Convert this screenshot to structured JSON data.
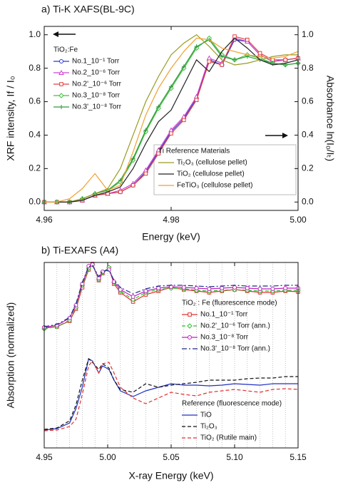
{
  "chart_data": [
    {
      "type": "line",
      "title": "a) Ti-K XAFS(BL-9C)",
      "x_label": "Energy (keV)",
      "y_label": "XRF intensity, If / I₀",
      "y2_label": "Absorbance ln(I₀/Iₜ)",
      "xlim": [
        4.96,
        5.0
      ],
      "xticks": [
        4.96,
        4.98,
        {
          "value": 5,
          "label": "5.00"
        }
      ],
      "ylim": [
        -0.05,
        1.05
      ],
      "yticks": [
        {
          "value": 0,
          "label": "0.0"
        },
        0.2,
        0.4,
        0.6,
        0.8,
        {
          "value": 1,
          "label": "1.0"
        }
      ],
      "y2lim": [
        -0.05,
        1.05
      ],
      "y2ticks": [
        {
          "value": 0,
          "label": "0.0"
        },
        0.2,
        0.4,
        0.6,
        0.8,
        {
          "value": 1,
          "label": "1.0"
        }
      ],
      "legend_titles": [
        "TiO₂:Fe",
        "Ti Reference Materials"
      ],
      "x": [
        4.96,
        4.962,
        4.964,
        4.966,
        4.968,
        4.97,
        4.972,
        4.974,
        4.976,
        4.978,
        4.98,
        4.982,
        4.984,
        4.986,
        4.988,
        4.99,
        4.992,
        4.994,
        4.996,
        4.998,
        5.0
      ],
      "series": [
        {
          "name": "No.1_10⁻¹ Torr",
          "color": "#2a3ad0",
          "marker": "circle",
          "values": [
            0,
            0,
            0,
            0.01,
            0.04,
            0.05,
            0.06,
            0.1,
            0.18,
            0.3,
            0.42,
            0.5,
            0.62,
            0.85,
            0.82,
            0.97,
            0.96,
            0.88,
            0.84,
            0.85,
            0.86
          ]
        },
        {
          "name": "No.2_10⁻⁶ Torr",
          "color": "#d040d0",
          "marker": "triangle",
          "values": [
            0,
            0,
            0,
            0.01,
            0.04,
            0.05,
            0.07,
            0.11,
            0.19,
            0.31,
            0.43,
            0.51,
            0.63,
            0.86,
            0.83,
            0.98,
            0.96,
            0.88,
            0.84,
            0.85,
            0.86
          ]
        },
        {
          "name": "No.2'_10⁻⁶ Torr",
          "color": "#e04040",
          "marker": "square",
          "values": [
            0,
            0,
            0,
            0.01,
            0.04,
            0.05,
            0.06,
            0.1,
            0.17,
            0.29,
            0.41,
            0.49,
            0.61,
            0.84,
            0.82,
            0.99,
            0.97,
            0.89,
            0.85,
            0.85,
            0.86
          ]
        },
        {
          "name": "No.3_10⁻⁸ Torr",
          "color": "#40c040",
          "marker": "diamond",
          "values": [
            0,
            0,
            0,
            0.02,
            0.05,
            0.07,
            0.12,
            0.25,
            0.42,
            0.56,
            0.68,
            0.8,
            0.92,
            0.98,
            0.88,
            0.85,
            0.88,
            0.86,
            0.83,
            0.82,
            0.83
          ]
        },
        {
          "name": "No.3'_10⁻⁸ Torr",
          "color": "#2f9a3c",
          "marker": "plus",
          "values": [
            0,
            0,
            0,
            0.02,
            0.05,
            0.07,
            0.13,
            0.26,
            0.43,
            0.57,
            0.69,
            0.81,
            0.93,
            0.97,
            0.87,
            0.85,
            0.87,
            0.85,
            0.83,
            0.82,
            0.83
          ]
        },
        {
          "name": "Ti₂O₃ (cellulose pellet)",
          "color": "#9a9a20",
          "axis": "y2",
          "values": [
            0,
            0,
            0,
            0.02,
            0.05,
            0.08,
            0.2,
            0.4,
            0.6,
            0.75,
            0.88,
            0.95,
            1.0,
            0.93,
            0.85,
            0.82,
            0.83,
            0.85,
            0.87,
            0.88,
            0.88
          ]
        },
        {
          "name": "TiO₂ (cellulose pellet)",
          "color": "#222222",
          "axis": "y2",
          "values": [
            0,
            0,
            0,
            0.01,
            0.04,
            0.06,
            0.09,
            0.2,
            0.35,
            0.48,
            0.55,
            0.7,
            0.85,
            0.78,
            0.9,
            0.98,
            0.92,
            0.85,
            0.82,
            0.83,
            0.85
          ]
        },
        {
          "name": "FeTiO₃ (cellulose pellet)",
          "color": "#f0a030",
          "axis": "y2",
          "values": [
            0,
            0,
            0.02,
            0.08,
            0.17,
            0.07,
            0.1,
            0.3,
            0.52,
            0.68,
            0.8,
            0.9,
            0.98,
            0.97,
            0.92,
            0.9,
            0.88,
            0.87,
            0.86,
            0.87,
            0.9
          ]
        }
      ]
    },
    {
      "type": "line",
      "title": "b) Ti-EXAFS (A4)",
      "x_label": "X-ray Energy (keV)",
      "y_label": "Absorption (normalized)",
      "xlim": [
        4.95,
        5.15
      ],
      "xticks": [
        4.95,
        {
          "value": 5,
          "label": "5.00"
        },
        5.05,
        {
          "value": 5.1,
          "label": "5.10"
        },
        5.15
      ],
      "ylim": [
        0,
        2.6
      ],
      "grid_step": 0.01,
      "legend_titles": [
        "TiO₂ : Fe (fluorescence mode)",
        "Reference (fluorescence mode)"
      ],
      "x": [
        4.95,
        4.96,
        4.97,
        4.975,
        4.98,
        4.985,
        4.988,
        4.993,
        4.996,
        5.001,
        5.005,
        5.01,
        5.02,
        5.03,
        5.04,
        5.05,
        5.06,
        5.07,
        5.08,
        5.09,
        5.1,
        5.11,
        5.12,
        5.13,
        5.14,
        5.15
      ],
      "series": [
        {
          "name": "No.1_10⁻¹ Torr",
          "color": "#e03030",
          "marker": "square",
          "values": [
            1.68,
            1.7,
            1.78,
            1.95,
            2.25,
            2.5,
            2.58,
            2.35,
            2.45,
            2.52,
            2.3,
            2.18,
            2.05,
            2.15,
            2.2,
            2.25,
            2.22,
            2.2,
            2.18,
            2.2,
            2.22,
            2.2,
            2.18,
            2.18,
            2.2,
            2.19
          ]
        },
        {
          "name": "No.2'_10⁻⁶ Torr (ann.)",
          "color": "#30c030",
          "marker": "diamond",
          "dash": "dashed",
          "values": [
            1.67,
            1.7,
            1.79,
            1.97,
            2.28,
            2.52,
            2.57,
            2.36,
            2.46,
            2.53,
            2.32,
            2.2,
            2.08,
            2.18,
            2.22,
            2.24,
            2.23,
            2.21,
            2.2,
            2.21,
            2.22,
            2.21,
            2.2,
            2.2,
            2.21,
            2.21
          ]
        },
        {
          "name": "No.3_10⁻⁸ Torr",
          "color": "#c020c0",
          "marker": "circle",
          "values": [
            1.69,
            1.72,
            1.82,
            2.0,
            2.3,
            2.55,
            2.57,
            2.38,
            2.47,
            2.5,
            2.33,
            2.22,
            2.12,
            2.2,
            2.24,
            2.26,
            2.25,
            2.24,
            2.23,
            2.24,
            2.25,
            2.24,
            2.23,
            2.23,
            2.24,
            2.24
          ]
        },
        {
          "name": "No.3'_10⁻⁸ Torr (ann.)",
          "color": "#1a2a90",
          "dash": "dashdot",
          "values": [
            1.7,
            1.73,
            1.83,
            2.02,
            2.32,
            2.54,
            2.56,
            2.4,
            2.48,
            2.49,
            2.35,
            2.25,
            2.16,
            2.23,
            2.27,
            2.28,
            2.28,
            2.27,
            2.26,
            2.27,
            2.28,
            2.27,
            2.27,
            2.27,
            2.28,
            2.28
          ]
        },
        {
          "name": "TiO",
          "color": "#2030c0",
          "values": [
            0.25,
            0.27,
            0.35,
            0.55,
            0.85,
            1.25,
            1.22,
            1.05,
            1.15,
            1.1,
            0.95,
            0.8,
            0.72,
            0.8,
            0.85,
            0.9,
            0.88,
            0.88,
            0.87,
            0.88,
            0.9,
            0.89,
            0.88,
            0.9,
            0.9,
            0.9
          ]
        },
        {
          "name": "Ti₂O₃",
          "color": "#111111",
          "dash": "dashed",
          "values": [
            0.26,
            0.28,
            0.38,
            0.6,
            0.95,
            1.25,
            1.2,
            1.1,
            1.18,
            1.12,
            0.95,
            0.82,
            0.78,
            0.9,
            0.85,
            0.88,
            0.9,
            0.92,
            0.95,
            0.95,
            0.95,
            0.97,
            0.98,
            0.98,
            1.0,
            1.0
          ]
        },
        {
          "name": "TiO₂ (Rutile main)",
          "color": "#e03030",
          "dash": "dashed",
          "values": [
            0.24,
            0.25,
            0.3,
            0.4,
            0.75,
            1.15,
            1.22,
            1.05,
            1.18,
            1.2,
            1.05,
            0.85,
            0.7,
            0.62,
            0.7,
            0.78,
            0.75,
            0.73,
            0.78,
            0.8,
            0.82,
            0.8,
            0.78,
            0.82,
            0.83,
            0.82
          ]
        }
      ]
    }
  ]
}
